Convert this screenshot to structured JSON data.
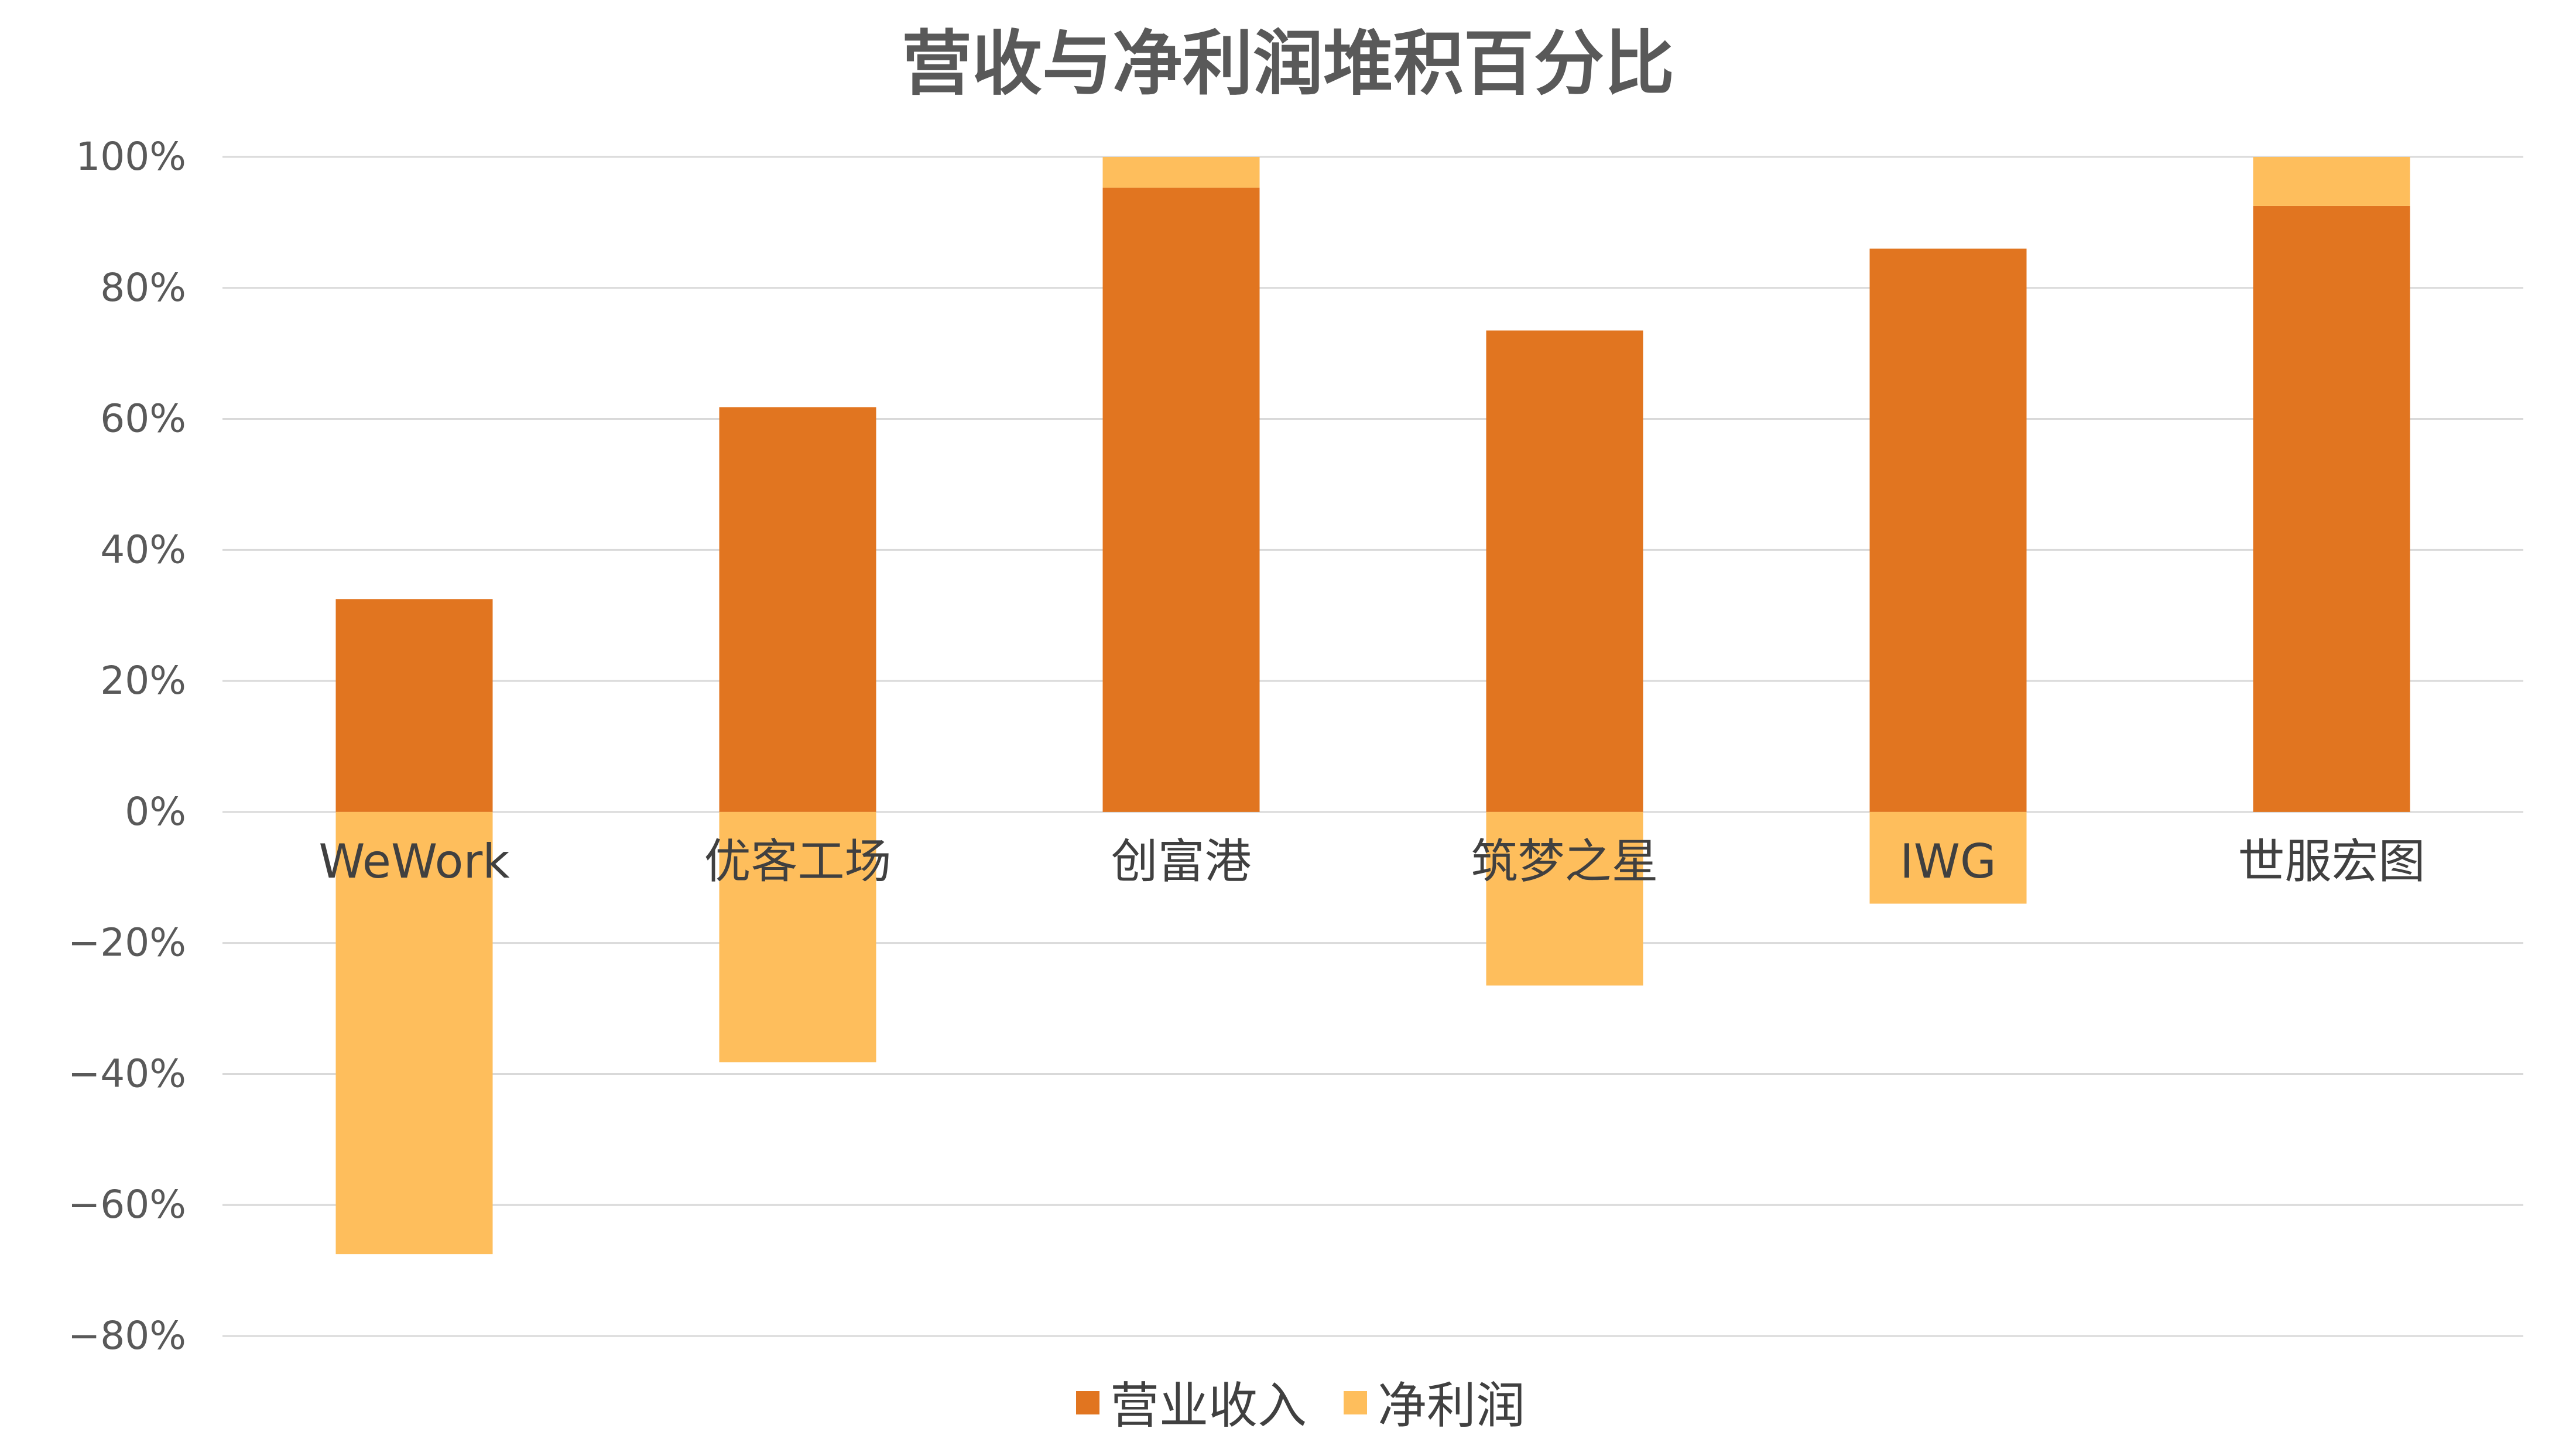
{
  "chart_data": {
    "type": "bar",
    "stacked": true,
    "title": "营收与净利润堆积百分比",
    "categories": [
      "WeWork",
      "优客工场",
      "创富港",
      "筑梦之星",
      "IWG",
      "世服宏图"
    ],
    "series": [
      {
        "name": "营业收入",
        "color": "#E17520",
        "values": [
          32.5,
          61.8,
          95.3,
          73.5,
          86.0,
          92.5
        ]
      },
      {
        "name": "净利润",
        "color": "#FEBE5C",
        "values": [
          -67.5,
          -38.2,
          4.7,
          -26.5,
          -14.0,
          7.5
        ]
      }
    ],
    "ylim": [
      -80,
      100
    ],
    "yticks": [
      "100%",
      "80%",
      "60%",
      "40%",
      "20%",
      "0%",
      "−20%",
      "−40%",
      "−60%",
      "−80%"
    ],
    "ytick_values": [
      100,
      80,
      60,
      40,
      20,
      0,
      -20,
      -40,
      -60,
      -80
    ],
    "grid": true,
    "legend_position": "bottom"
  }
}
